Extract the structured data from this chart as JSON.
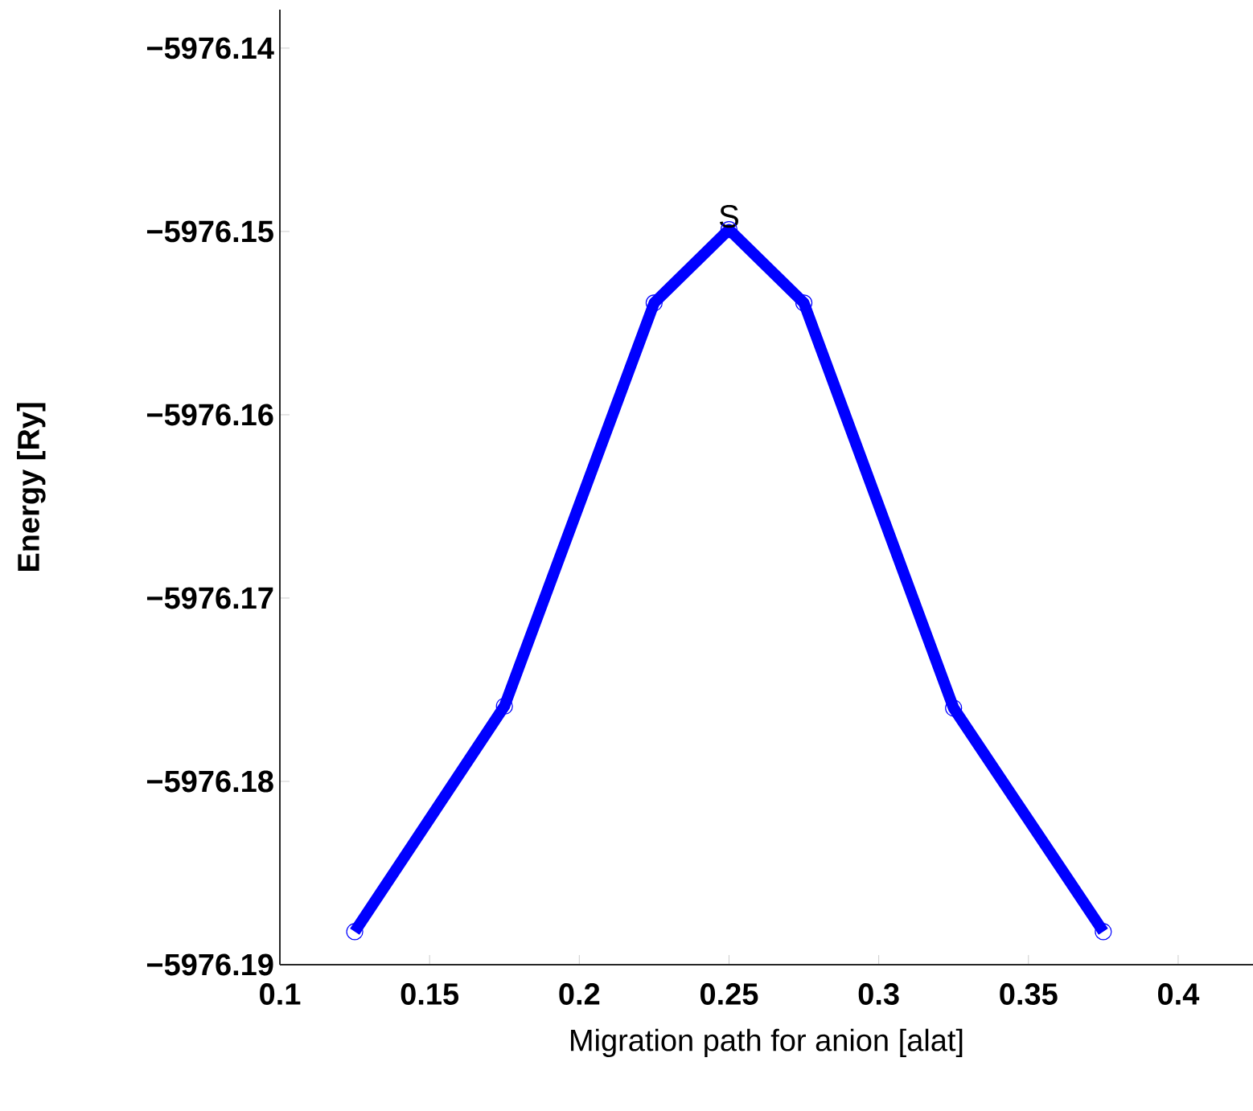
{
  "chart_data": {
    "type": "line",
    "xlabel": "Migration path for anion [alat]",
    "ylabel": "Energy [Ry]",
    "x": [
      0.125,
      0.175,
      0.225,
      0.25,
      0.275,
      0.325,
      0.375
    ],
    "series": [
      {
        "color": "#0000ff",
        "values": [
          -5976.1882,
          -5976.1759,
          -5976.1539,
          -5976.1499,
          -5976.1539,
          -5976.176,
          -5976.1882
        ]
      }
    ],
    "xlim": [
      0.1,
      0.425
    ],
    "xticks": [
      0.1,
      0.15,
      0.2,
      0.25,
      0.3,
      0.35,
      0.4
    ],
    "ylim": [
      -5976.19,
      -5976.1379
    ],
    "yticks": [
      {
        "value": -5976.19,
        "label": "−5976.19"
      },
      {
        "value": -5976.18,
        "label": "−5976.18"
      },
      {
        "value": -5976.17,
        "label": "−5976.17"
      },
      {
        "value": -5976.16,
        "label": "−5976.16"
      },
      {
        "value": -5976.15,
        "label": "−5976.15"
      },
      {
        "value": -5976.14,
        "label": "−5976.14"
      }
    ],
    "annotations": [
      {
        "text": "S",
        "x": 0.25,
        "y": -5976.1499
      }
    ],
    "marker": "circle",
    "line_style": "solid"
  }
}
